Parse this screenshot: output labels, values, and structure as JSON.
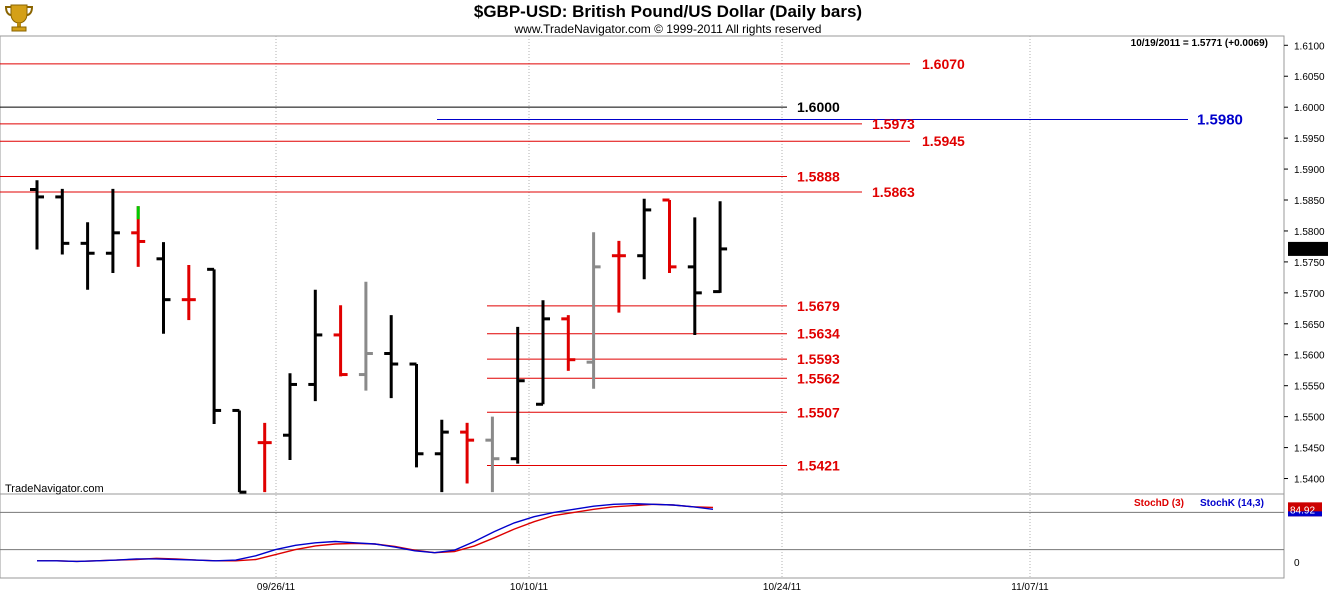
{
  "header": {
    "title": "$GBP-USD:  British Pound/US Dollar  (Daily bars)",
    "subtitle": "www.TradeNavigator.com © 1999-2011 All rights reserved",
    "last_quote": "10/19/2011 = 1.5771 (+0.0069)",
    "watermark": "TradeNavigator.com",
    "logo_icon": "trophy-icon"
  },
  "chart_data": [
    {
      "type": "bar",
      "subtype": "ohlc",
      "y_axis_side": "right",
      "ylim": [
        1.5375,
        1.6115
      ],
      "y_ticks": [
        "1.6100",
        "1.6050",
        "1.6000",
        "1.5950",
        "1.5900",
        "1.5850",
        "1.5800",
        "1.5750",
        "1.5700",
        "1.5650",
        "1.5600",
        "1.5550",
        "1.5500",
        "1.5450",
        "1.5400"
      ],
      "last_price_label": "1.5771",
      "x_labels": [
        "09/26/11",
        "10/10/11",
        "10/24/11",
        "11/07/11"
      ],
      "grid": "vertical dotted at date labels",
      "colors": {
        "up": "#000000",
        "down": "#e00000",
        "neutral": "#8a8a8a",
        "highlight": "#00cc00",
        "level": "#cc0000",
        "level_1600": "#000000",
        "level_1598": "#0000cc"
      },
      "bars": [
        {
          "o": 1.5867,
          "h": 1.5882,
          "l": 1.577,
          "c": 1.5855,
          "color": "black"
        },
        {
          "o": 1.5855,
          "h": 1.5868,
          "l": 1.5762,
          "c": 1.578,
          "color": "black"
        },
        {
          "o": 1.578,
          "h": 1.5814,
          "l": 1.5705,
          "c": 1.5764,
          "color": "black"
        },
        {
          "o": 1.5764,
          "h": 1.5868,
          "l": 1.5732,
          "c": 1.5797,
          "color": "black"
        },
        {
          "o": 1.5797,
          "h": 1.584,
          "l": 1.5742,
          "c": 1.5783,
          "color": "red",
          "high_tick_color": "green"
        },
        {
          "o": 1.5755,
          "h": 1.5782,
          "l": 1.5634,
          "c": 1.5689,
          "color": "black"
        },
        {
          "o": 1.5689,
          "h": 1.5745,
          "l": 1.5656,
          "c": 1.5689,
          "color": "red"
        },
        {
          "o": 1.5738,
          "h": 1.5738,
          "l": 1.5488,
          "c": 1.551,
          "color": "black"
        },
        {
          "o": 1.551,
          "h": 1.551,
          "l": 1.5378,
          "c": 1.5378,
          "color": "black"
        },
        {
          "o": 1.5458,
          "h": 1.549,
          "l": 1.5378,
          "c": 1.5458,
          "color": "red"
        },
        {
          "o": 1.547,
          "h": 1.557,
          "l": 1.543,
          "c": 1.5552,
          "color": "black"
        },
        {
          "o": 1.5552,
          "h": 1.5705,
          "l": 1.5525,
          "c": 1.5632,
          "color": "black"
        },
        {
          "o": 1.5632,
          "h": 1.568,
          "l": 1.5565,
          "c": 1.5568,
          "color": "red"
        },
        {
          "o": 1.5568,
          "h": 1.5718,
          "l": 1.5542,
          "c": 1.5602,
          "color": "gray"
        },
        {
          "o": 1.5602,
          "h": 1.5664,
          "l": 1.553,
          "c": 1.5585,
          "color": "black"
        },
        {
          "o": 1.5585,
          "h": 1.5585,
          "l": 1.5418,
          "c": 1.544,
          "color": "black"
        },
        {
          "o": 1.544,
          "h": 1.5495,
          "l": 1.5378,
          "c": 1.5475,
          "color": "black"
        },
        {
          "o": 1.5475,
          "h": 1.549,
          "l": 1.5392,
          "c": 1.5462,
          "color": "red"
        },
        {
          "o": 1.5462,
          "h": 1.55,
          "l": 1.5378,
          "c": 1.5432,
          "color": "gray"
        },
        {
          "o": 1.5432,
          "h": 1.5645,
          "l": 1.5424,
          "c": 1.5558,
          "color": "black"
        },
        {
          "o": 1.552,
          "h": 1.5688,
          "l": 1.552,
          "c": 1.5658,
          "color": "black"
        },
        {
          "o": 1.5658,
          "h": 1.5664,
          "l": 1.5574,
          "c": 1.5592,
          "color": "red"
        },
        {
          "o": 1.5588,
          "h": 1.5798,
          "l": 1.5545,
          "c": 1.5742,
          "color": "gray"
        },
        {
          "o": 1.576,
          "h": 1.5784,
          "l": 1.5668,
          "c": 1.576,
          "color": "red"
        },
        {
          "o": 1.576,
          "h": 1.5852,
          "l": 1.5722,
          "c": 1.5834,
          "color": "black"
        },
        {
          "o": 1.585,
          "h": 1.585,
          "l": 1.5732,
          "c": 1.5742,
          "color": "red"
        },
        {
          "o": 1.5742,
          "h": 1.5822,
          "l": 1.5632,
          "c": 1.57,
          "color": "black"
        },
        {
          "o": 1.5702,
          "h": 1.5848,
          "l": 1.57,
          "c": 1.5771,
          "color": "black"
        }
      ],
      "levels": [
        {
          "value": 1.607,
          "label": "1.6070",
          "color": "red"
        },
        {
          "value": 1.6,
          "label": "1.6000",
          "color": "black"
        },
        {
          "value": 1.598,
          "label": "1.5980",
          "color": "blue"
        },
        {
          "value": 1.5973,
          "label": "1.5973",
          "color": "red"
        },
        {
          "value": 1.5945,
          "label": "1.5945",
          "color": "red"
        },
        {
          "value": 1.5888,
          "label": "1.5888",
          "color": "red"
        },
        {
          "value": 1.5863,
          "label": "1.5863",
          "color": "red"
        },
        {
          "value": 1.5679,
          "label": "1.5679",
          "color": "red"
        },
        {
          "value": 1.5634,
          "label": "1.5634",
          "color": "red"
        },
        {
          "value": 1.5593,
          "label": "1.5593",
          "color": "red"
        },
        {
          "value": 1.5562,
          "label": "1.5562",
          "color": "red"
        },
        {
          "value": 1.5507,
          "label": "1.5507",
          "color": "red"
        },
        {
          "value": 1.5421,
          "label": "1.5421",
          "color": "red"
        }
      ]
    },
    {
      "type": "line",
      "title": "",
      "ylim": [
        0,
        100
      ],
      "y_ticks": [
        "0"
      ],
      "last_value_label": "84.92",
      "reference_lines": [
        80,
        20
      ],
      "series": [
        {
          "name": "StochD (3)",
          "color": "#dd0000",
          "values": [
            2,
            2,
            1,
            2,
            3,
            4,
            6,
            5,
            3,
            2,
            2,
            4,
            12,
            20,
            26,
            29,
            30,
            29,
            25,
            19,
            15,
            17,
            26,
            39,
            53,
            65,
            75,
            80,
            85,
            89,
            91,
            93,
            92,
            89,
            88
          ]
        },
        {
          "name": "StochK (14,3)",
          "color": "#0000cc",
          "values": [
            2,
            2,
            1,
            2,
            3,
            5,
            5,
            4,
            3,
            2,
            3,
            10,
            20,
            27,
            31,
            33,
            31,
            29,
            24,
            18,
            15,
            19,
            33,
            49,
            63,
            73,
            80,
            85,
            90,
            93,
            94,
            93,
            92,
            89,
            85
          ]
        }
      ]
    }
  ]
}
